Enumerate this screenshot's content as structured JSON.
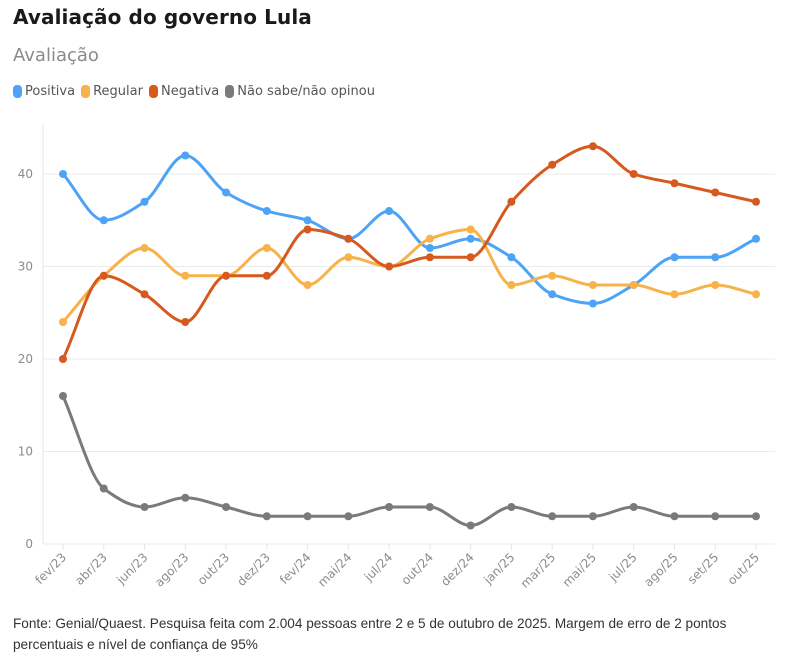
{
  "header": {
    "title": "Avaliação do governo Lula",
    "subtitle": "Avaliação"
  },
  "footer": {
    "source": "Fonte: Genial/Quaest. Pesquisa feita com 2.004 pessoas entre 2 e 5 de outubro de 2025. Margem de erro de 2 pontos percentuais e nível de confiança de 95%"
  },
  "chart_data": {
    "type": "line",
    "title": "Avaliação do governo Lula",
    "subtitle": "Avaliação",
    "xlabel": "",
    "ylabel": "",
    "x": [
      "fev/23",
      "abr/23",
      "jun/23",
      "ago/23",
      "out/23",
      "dez/23",
      "fev/24",
      "mai/24",
      "jul/24",
      "out/24",
      "dez/24",
      "jan/25",
      "mar/25",
      "mai/25",
      "jul/25",
      "ago/25",
      "set/25",
      "out/25"
    ],
    "ylim": [
      0,
      45
    ],
    "yticks": [
      0,
      10,
      20,
      30,
      40
    ],
    "grid": true,
    "legend_position": "top-left",
    "smooth": true,
    "series": [
      {
        "name": "Positiva",
        "color": "#4da3f5",
        "values": [
          40,
          35,
          37,
          42,
          38,
          36,
          35,
          33,
          36,
          32,
          33,
          31,
          27,
          26,
          28,
          31,
          31,
          33
        ]
      },
      {
        "name": "Regular",
        "color": "#f7b24a",
        "values": [
          24,
          29,
          32,
          29,
          29,
          32,
          28,
          31,
          30,
          33,
          34,
          28,
          29,
          28,
          28,
          27,
          28,
          27
        ]
      },
      {
        "name": "Negativa",
        "color": "#d65a1d",
        "values": [
          20,
          29,
          27,
          24,
          29,
          29,
          34,
          33,
          30,
          31,
          31,
          37,
          41,
          43,
          40,
          39,
          38,
          37
        ]
      },
      {
        "name": "Não sabe/não opinou",
        "color": "#7a7a7a",
        "values": [
          16,
          6,
          4,
          5,
          4,
          3,
          3,
          3,
          4,
          4,
          2,
          4,
          3,
          3,
          4,
          3,
          3,
          3
        ]
      }
    ]
  }
}
